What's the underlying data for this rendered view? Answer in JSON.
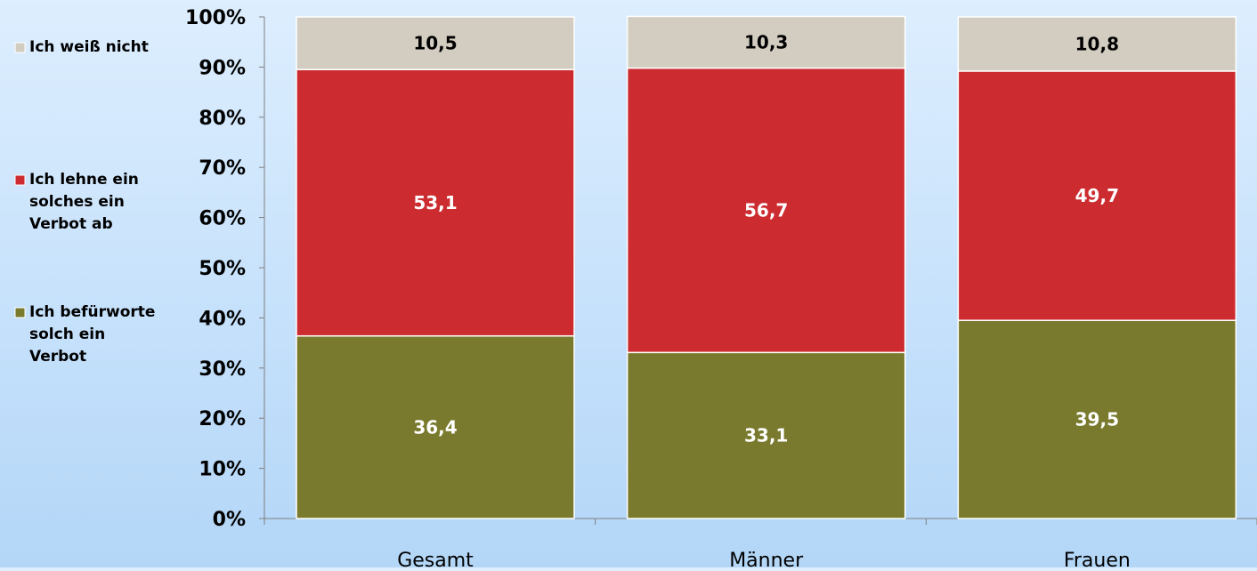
{
  "chart_data": {
    "type": "bar",
    "stacked": true,
    "normalized_percent": true,
    "categories": [
      "Gesamt",
      "Männer",
      "Frauen"
    ],
    "series": [
      {
        "name": "Ich befürworte solch ein Verbot",
        "values": [
          36.4,
          33.1,
          39.5
        ],
        "labels": [
          "36,4",
          "33,1",
          "39,5"
        ],
        "color": "#7a7a2e",
        "label_color": "#ffffff"
      },
      {
        "name": "Ich lehne ein solches ein Verbot ab",
        "values": [
          53.1,
          56.7,
          49.7
        ],
        "labels": [
          "53,1",
          "56,7",
          "49,7"
        ],
        "color": "#cc2c30",
        "label_color": "#ffffff"
      },
      {
        "name": "Ich weiß nicht",
        "values": [
          10.5,
          10.3,
          10.8
        ],
        "labels": [
          "10,5",
          "10,3",
          "10,8"
        ],
        "color": "#d3cdc1",
        "label_color": "#000000"
      }
    ],
    "legend": {
      "placement": "left",
      "items": [
        {
          "lines": [
            "Ich weiß nicht"
          ],
          "color": "#d3cdc1"
        },
        {
          "lines": [
            "Ich lehne ein",
            "solches ein",
            "Verbot ab"
          ],
          "color": "#cc2c30"
        },
        {
          "lines": [
            "Ich befürworte",
            "solch ein",
            "Verbot"
          ],
          "color": "#7a7a2e"
        }
      ]
    },
    "y_ticks": [
      "0%",
      "10%",
      "20%",
      "30%",
      "40%",
      "50%",
      "60%",
      "70%",
      "80%",
      "90%",
      "100%"
    ],
    "ylim": [
      0,
      100
    ],
    "grid": false,
    "title": "",
    "xlabel": "",
    "ylabel": ""
  }
}
